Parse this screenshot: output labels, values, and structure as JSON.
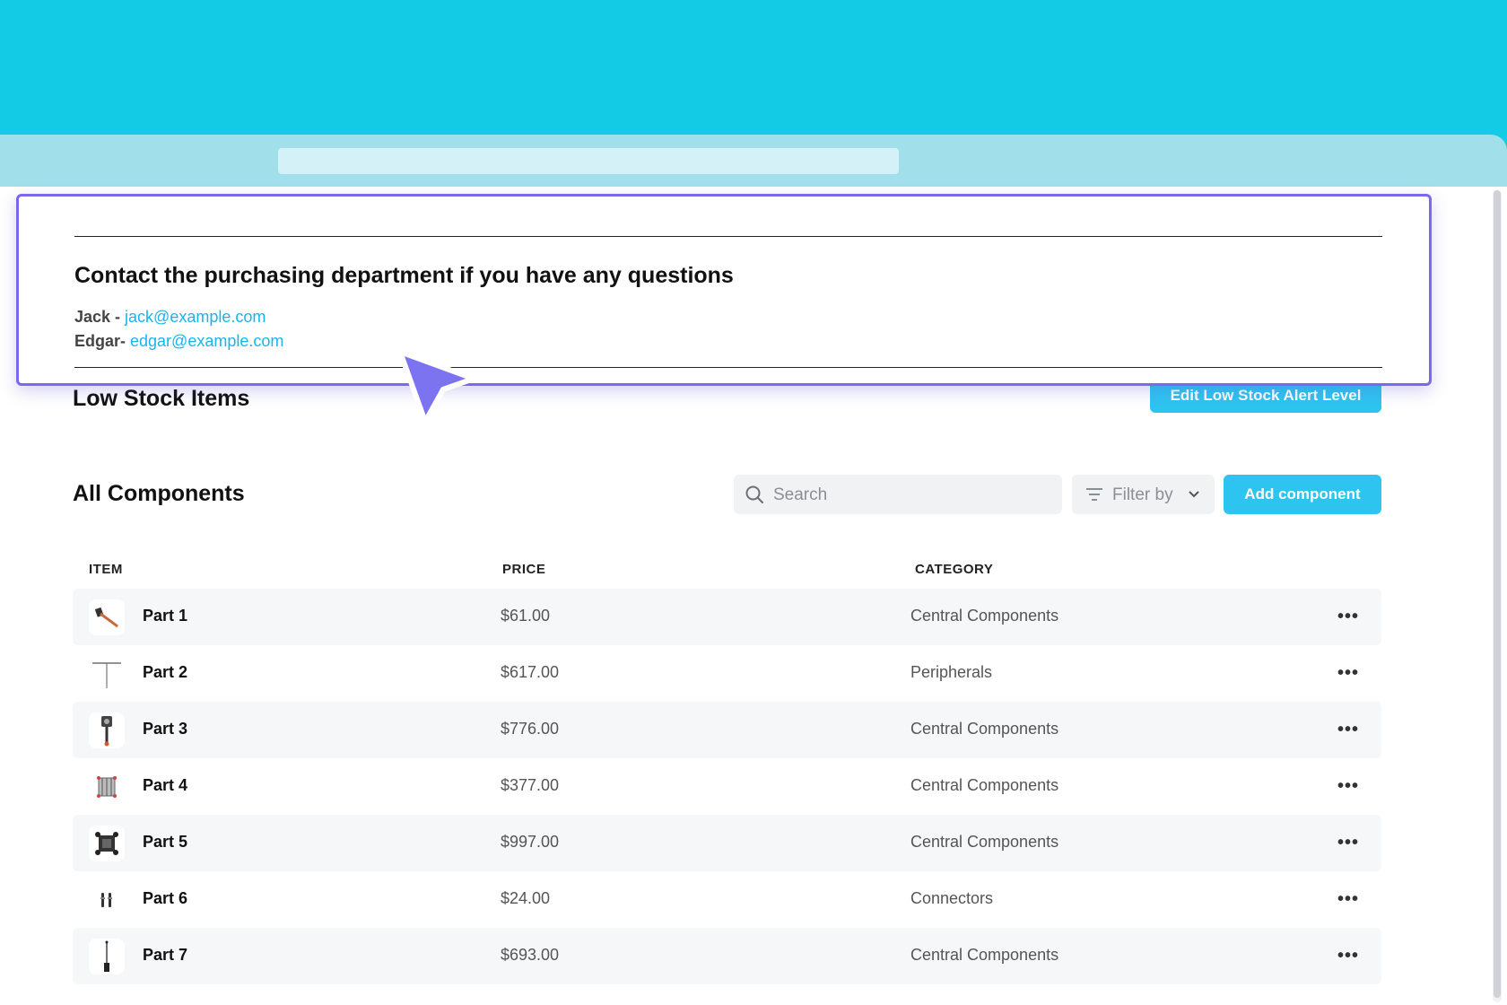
{
  "contact": {
    "title": "Contact the purchasing department if you have any questions",
    "jack_name": "Jack - ",
    "jack_email": "jack@example.com",
    "edgar_name": "Edgar- ",
    "edgar_email": "edgar@example.com"
  },
  "low_stock": {
    "title": "Low Stock Items",
    "edit_button": "Edit Low Stock Alert Level"
  },
  "components": {
    "title": "All Components",
    "search_placeholder": "Search",
    "filter_label": "Filter by",
    "add_button": "Add component",
    "columns": {
      "item": "ITEM",
      "price": "PRICE",
      "category": "CATEGORY"
    },
    "rows": [
      {
        "name": "Part 1",
        "price": "$61.00",
        "category": "Central Components",
        "icon": "hammer-part-icon"
      },
      {
        "name": "Part 2",
        "price": "$617.00",
        "category": "Peripherals",
        "icon": "antenna-part-icon"
      },
      {
        "name": "Part 3",
        "price": "$776.00",
        "category": "Central Components",
        "icon": "sensor-part-icon"
      },
      {
        "name": "Part 4",
        "price": "$377.00",
        "category": "Central Components",
        "icon": "bracket-part-icon"
      },
      {
        "name": "Part 5",
        "price": "$997.00",
        "category": "Central Components",
        "icon": "board-part-icon"
      },
      {
        "name": "Part 6",
        "price": "$24.00",
        "category": "Connectors",
        "icon": "connector-part-icon"
      },
      {
        "name": "Part 7",
        "price": "$693.00",
        "category": "Central Components",
        "icon": "probe-part-icon"
      }
    ]
  },
  "colors": {
    "accent": "#2ec4f0",
    "brand_background": "#13cbe4",
    "highlight_border": "#7b68ee"
  }
}
